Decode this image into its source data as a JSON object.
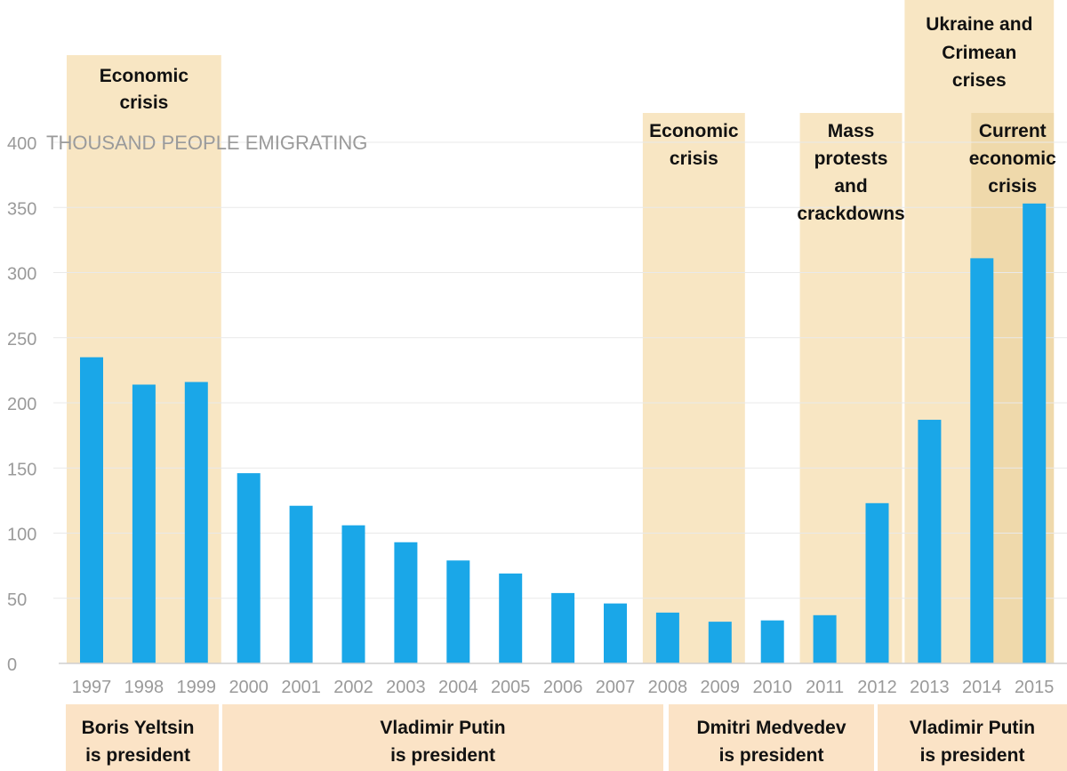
{
  "chart_data": {
    "type": "bar",
    "categories": [
      "1997",
      "1998",
      "1999",
      "2000",
      "2001",
      "2002",
      "2003",
      "2004",
      "2005",
      "2006",
      "2007",
      "2008",
      "2009",
      "2010",
      "2011",
      "2012",
      "2013",
      "2014",
      "2015"
    ],
    "values": [
      235,
      214,
      216,
      146,
      121,
      106,
      93,
      79,
      69,
      54,
      46,
      39,
      32,
      33,
      37,
      123,
      187,
      311,
      353
    ],
    "ylabel": "THOUSAND PEOPLE EMIGRATING",
    "ylim": [
      0,
      400
    ],
    "yticks": [
      0,
      50,
      100,
      150,
      200,
      250,
      300,
      350,
      400
    ],
    "grid": true,
    "bar_color": "#1aa7e8",
    "band_color": "#f8e6c3",
    "band_dark_color": "#efd9ab",
    "president_color": "#fbe3c6",
    "annotations": [
      {
        "lines": [
          "Economic",
          "crisis"
        ],
        "from": "1997",
        "to": "1999"
      },
      {
        "lines": [
          "Economic",
          "crisis"
        ],
        "from": "2008",
        "to": "2009"
      },
      {
        "lines": [
          "Mass",
          "protests",
          "and",
          "crackdowns"
        ],
        "from": "2011",
        "to": "2012"
      },
      {
        "lines": [
          "Ukraine and",
          "Crimean",
          "crises"
        ],
        "from": "2013",
        "to": "2015"
      },
      {
        "lines": [
          "Current",
          "economic",
          "crisis"
        ],
        "from": "2014",
        "to": "2015"
      }
    ],
    "presidents": [
      {
        "lines": [
          "Boris Yeltsin",
          "is president"
        ],
        "from": "1997",
        "to": "1999"
      },
      {
        "lines": [
          "Vladimir Putin",
          "is president"
        ],
        "from": "2000",
        "to": "2007"
      },
      {
        "lines": [
          "Dmitri Medvedev",
          "is president"
        ],
        "from": "2008",
        "to": "2011"
      },
      {
        "lines": [
          "Vladimir Putin",
          "is president"
        ],
        "from": "2012",
        "to": "2015"
      }
    ]
  }
}
